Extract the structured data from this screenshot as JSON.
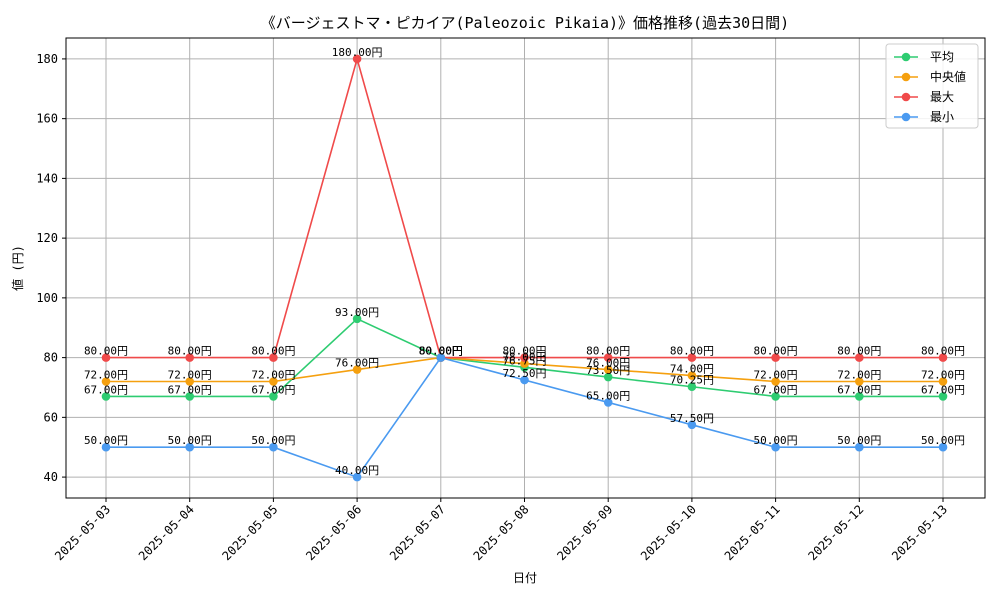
{
  "chart_data": {
    "type": "line",
    "title": "《バージェストマ・ピカイア(Paleozoic Pikaia)》価格推移(過去30日間)",
    "xlabel": "日付",
    "ylabel": "値 (円)",
    "categories": [
      "2025-05-03",
      "2025-05-04",
      "2025-05-05",
      "2025-05-06",
      "2025-05-07",
      "2025-05-08",
      "2025-05-09",
      "2025-05-10",
      "2025-05-11",
      "2025-05-12",
      "2025-05-13"
    ],
    "series": [
      {
        "name": "平均",
        "color": "#2ecc71",
        "values": [
          67,
          67,
          67,
          93,
          80,
          76.75,
          73.5,
          70.25,
          67,
          67,
          67
        ],
        "labels": [
          "67.00円",
          "67.00円",
          "67.00円",
          "93.00円",
          "80.00円",
          "76.75円",
          "73.50円",
          "70.25円",
          "67.00円",
          "67.00円",
          "67.00円"
        ]
      },
      {
        "name": "中央値",
        "color": "#f5a00f",
        "values": [
          72,
          72,
          72,
          76,
          80,
          78,
          76,
          74,
          72,
          72,
          72
        ],
        "labels": [
          "72.00円",
          "72.00円",
          "72.00円",
          "76.00円",
          "80.00円",
          "78.00円",
          "76.00円",
          "74.00円",
          "72.00円",
          "72.00円",
          "72.00円"
        ]
      },
      {
        "name": "最大",
        "color": "#f04a4a",
        "values": [
          80,
          80,
          80,
          180,
          80,
          80,
          80,
          80,
          80,
          80,
          80
        ],
        "labels": [
          "80.00円",
          "80.00円",
          "80.00円",
          "180.00円",
          "80.00円",
          "80.00円",
          "80.00円",
          "80.00円",
          "80.00円",
          "80.00円",
          "80.00円"
        ]
      },
      {
        "name": "最小",
        "color": "#4a9af0",
        "values": [
          50,
          50,
          50,
          40,
          80,
          72.5,
          65,
          57.5,
          50,
          50,
          50
        ],
        "labels": [
          "50.00円",
          "50.00円",
          "50.00円",
          "40.00円",
          "80.00円",
          "72.50円",
          "65.00円",
          "57.50円",
          "50.00円",
          "50.00円",
          "50.00円"
        ]
      }
    ],
    "yticks": [
      "40",
      "60",
      "80",
      "100",
      "120",
      "140",
      "160",
      "180"
    ],
    "ytick_values": [
      40,
      60,
      80,
      100,
      120,
      140,
      160,
      180
    ],
    "ylim": [
      33,
      187
    ],
    "grid": true,
    "legend_position": "top-right"
  }
}
